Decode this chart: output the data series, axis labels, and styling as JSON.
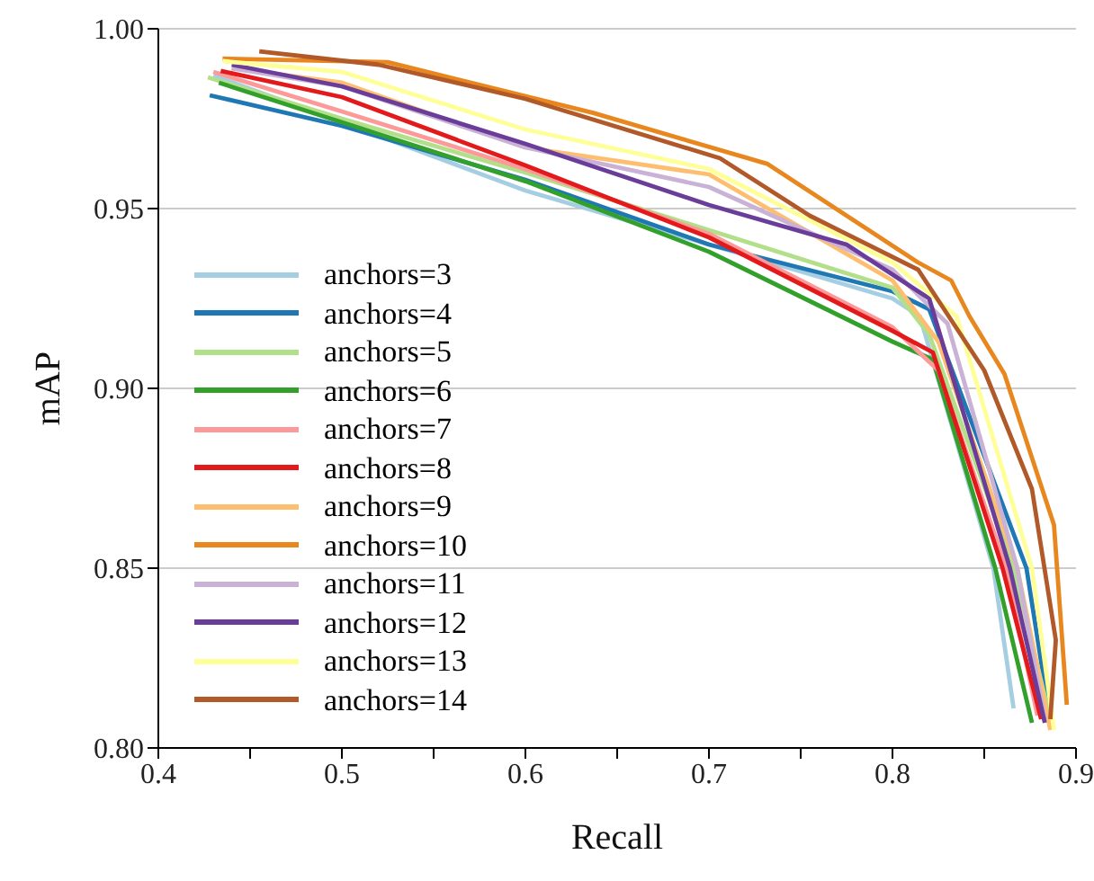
{
  "chart_data": {
    "type": "line",
    "xlabel": "Recall",
    "ylabel": "mAP",
    "xlim": [
      0.4,
      0.9
    ],
    "ylim": [
      0.8,
      1.0
    ],
    "xticks": [
      0.4,
      {
        "value": 0.45,
        "label": null
      },
      0.5,
      {
        "value": 0.55,
        "label": null
      },
      0.6,
      {
        "value": 0.65,
        "label": null
      },
      0.7,
      {
        "value": 0.75,
        "label": null
      },
      0.8,
      {
        "value": 0.85,
        "label": null
      },
      0.9
    ],
    "yticks": [
      {
        "value": 0.8,
        "label": "0.80"
      },
      {
        "value": 0.85,
        "label": "0.85"
      },
      {
        "value": 0.9,
        "label": "0.90"
      },
      {
        "value": 0.95,
        "label": "0.95"
      },
      {
        "value": 1.0,
        "label": "1.00"
      }
    ],
    "grid": "y",
    "legend": "left",
    "marker": "none",
    "line_style": "solid",
    "series": [
      {
        "name": "anchors=3",
        "color": "#a6cee3",
        "x": [
          0.43,
          0.5,
          0.6,
          0.7,
          0.8,
          0.815,
          0.855,
          0.866
        ],
        "values": [
          0.987,
          0.974,
          0.955,
          0.94,
          0.925,
          0.92,
          0.85,
          0.811
        ]
      },
      {
        "name": "anchors=4",
        "color": "#1f78b4",
        "x": [
          0.428,
          0.5,
          0.6,
          0.7,
          0.8,
          0.82,
          0.873,
          0.885
        ],
        "values": [
          0.9815,
          0.973,
          0.958,
          0.94,
          0.927,
          0.922,
          0.85,
          0.811
        ]
      },
      {
        "name": "anchors=5",
        "color": "#b2df8a",
        "x": [
          0.427,
          0.5,
          0.6,
          0.7,
          0.8,
          0.82,
          0.866,
          0.887
        ],
        "values": [
          0.9865,
          0.975,
          0.96,
          0.944,
          0.928,
          0.915,
          0.85,
          0.806
        ]
      },
      {
        "name": "anchors=6",
        "color": "#33a02c",
        "x": [
          0.433,
          0.5,
          0.6,
          0.7,
          0.8,
          0.822,
          0.856,
          0.876
        ],
        "values": [
          0.985,
          0.974,
          0.9576,
          0.938,
          0.913,
          0.908,
          0.85,
          0.807
        ]
      },
      {
        "name": "anchors=7",
        "color": "#fb9a99",
        "x": [
          0.43,
          0.5,
          0.6,
          0.7,
          0.8,
          0.825,
          0.862,
          0.879
        ],
        "values": [
          0.988,
          0.977,
          0.961,
          0.943,
          0.917,
          0.905,
          0.85,
          0.809
        ]
      },
      {
        "name": "anchors=8",
        "color": "#e31a1c",
        "x": [
          0.434,
          0.5,
          0.6,
          0.7,
          0.8,
          0.822,
          0.86,
          0.881
        ],
        "values": [
          0.9883,
          0.981,
          0.962,
          0.942,
          0.916,
          0.91,
          0.85,
          0.808
        ]
      },
      {
        "name": "anchors=9",
        "color": "#fdbf6f",
        "x": [
          0.44,
          0.5,
          0.6,
          0.7,
          0.8,
          0.825,
          0.868,
          0.886
        ],
        "values": [
          0.989,
          0.985,
          0.967,
          0.9595,
          0.93,
          0.913,
          0.85,
          0.805
        ]
      },
      {
        "name": "anchors=10",
        "color": "#e8871e",
        "x": [
          0.435,
          0.525,
          0.637,
          0.732,
          0.814,
          0.832,
          0.842,
          0.861,
          0.888,
          0.895
        ],
        "values": [
          0.9917,
          0.9907,
          0.9766,
          0.9624,
          0.935,
          0.93,
          0.92,
          0.904,
          0.862,
          0.812
        ]
      },
      {
        "name": "anchors=11",
        "color": "#cab2d6",
        "x": [
          0.44,
          0.5,
          0.6,
          0.7,
          0.8,
          0.83,
          0.868,
          0.883
        ],
        "values": [
          0.989,
          0.984,
          0.967,
          0.956,
          0.933,
          0.918,
          0.85,
          0.808
        ]
      },
      {
        "name": "anchors=12",
        "color": "#6a3d9a",
        "x": [
          0.44,
          0.5,
          0.6,
          0.7,
          0.775,
          0.82,
          0.864,
          0.883
        ],
        "values": [
          0.99,
          0.984,
          0.968,
          0.951,
          0.94,
          0.925,
          0.85,
          0.807
        ]
      },
      {
        "name": "anchors=13",
        "color": "#ffff99",
        "x": [
          0.435,
          0.5,
          0.6,
          0.7,
          0.8,
          0.835,
          0.876,
          0.888
        ],
        "values": [
          0.991,
          0.988,
          0.972,
          0.961,
          0.935,
          0.92,
          0.85,
          0.805
        ]
      },
      {
        "name": "anchors=14",
        "color": "#b15928",
        "x": [
          0.455,
          0.52,
          0.6,
          0.706,
          0.755,
          0.814,
          0.85,
          0.876,
          0.889,
          0.886
        ],
        "values": [
          0.9937,
          0.99,
          0.9805,
          0.964,
          0.948,
          0.933,
          0.905,
          0.872,
          0.83,
          0.808
        ]
      }
    ]
  }
}
